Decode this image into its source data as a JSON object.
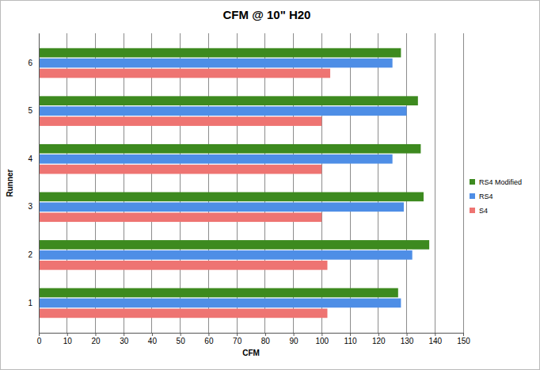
{
  "chart_data": {
    "type": "bar",
    "orientation": "horizontal",
    "title": "CFM @ 10\" H20",
    "x_label": "CFM",
    "y_label": "Runner",
    "categories": [
      "1",
      "2",
      "3",
      "4",
      "5",
      "6"
    ],
    "series": [
      {
        "name": "RS4 Modified",
        "color": "#3d8a1f",
        "values": [
          127,
          138,
          136,
          135,
          134,
          128
        ]
      },
      {
        "name": "RS4",
        "color": "#4e8ee6",
        "values": [
          128,
          132,
          129,
          125,
          130,
          125
        ]
      },
      {
        "name": "S4",
        "color": "#ee7472",
        "values": [
          102,
          102,
          100,
          100,
          100,
          103
        ]
      }
    ],
    "xlim": [
      0,
      150
    ],
    "xticks": [
      0,
      10,
      20,
      30,
      40,
      50,
      60,
      70,
      80,
      90,
      100,
      110,
      120,
      130,
      140,
      150
    ],
    "grid": true,
    "legend": "right"
  }
}
